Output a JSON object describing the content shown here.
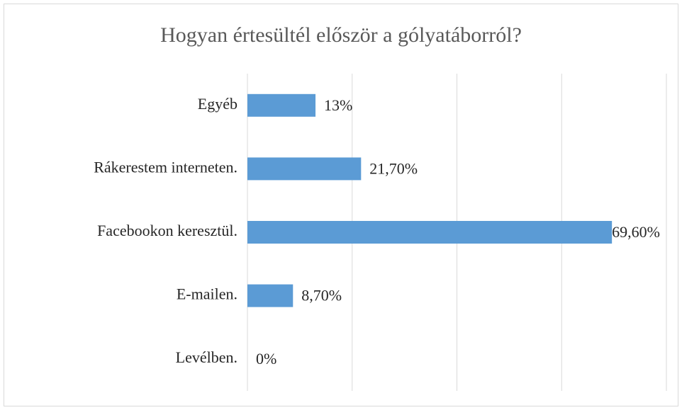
{
  "chart_data": {
    "type": "bar",
    "orientation": "horizontal",
    "title": "Hogyan értesültél először a gólyatáborról?",
    "categories": [
      "Egyéb",
      "Rákerestem interneten.",
      "Facebookon keresztül.",
      "E-mailen.",
      "Levélben."
    ],
    "values": [
      13,
      21.7,
      69.6,
      8.7,
      0
    ],
    "value_labels": [
      "13%",
      "21,70%",
      "69,60%",
      "8,70%",
      "0%"
    ],
    "color": "#5b9bd5",
    "xlim": [
      0,
      80
    ],
    "xticks": [
      0,
      20,
      40,
      60,
      80
    ],
    "grid": true
  }
}
